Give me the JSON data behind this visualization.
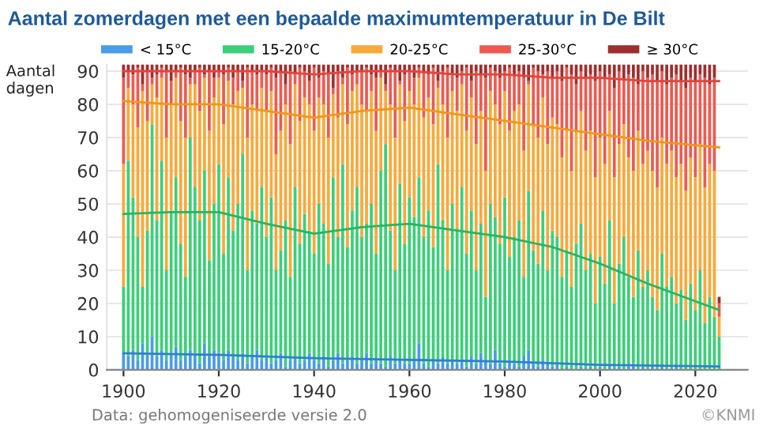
{
  "chart_data": {
    "type": "bar",
    "stacked": true,
    "title": "Aantal zomerdagen met een bepaalde maximumtemperatuur in De Bilt",
    "ylabel": "Aantal\ndagen",
    "x": [
      1900,
      1901,
      1902,
      1903,
      1904,
      1905,
      1906,
      1907,
      1908,
      1909,
      1910,
      1911,
      1912,
      1913,
      1914,
      1915,
      1916,
      1917,
      1918,
      1919,
      1920,
      1921,
      1922,
      1923,
      1924,
      1925,
      1926,
      1927,
      1928,
      1929,
      1930,
      1931,
      1932,
      1933,
      1934,
      1935,
      1936,
      1937,
      1938,
      1939,
      1940,
      1941,
      1942,
      1943,
      1944,
      1945,
      1946,
      1947,
      1948,
      1949,
      1950,
      1951,
      1952,
      1953,
      1954,
      1955,
      1956,
      1957,
      1958,
      1959,
      1960,
      1961,
      1962,
      1963,
      1964,
      1965,
      1966,
      1967,
      1968,
      1969,
      1970,
      1971,
      1972,
      1973,
      1974,
      1975,
      1976,
      1977,
      1978,
      1979,
      1980,
      1981,
      1982,
      1983,
      1984,
      1985,
      1986,
      1987,
      1988,
      1989,
      1990,
      1991,
      1992,
      1993,
      1994,
      1995,
      1996,
      1997,
      1998,
      1999,
      2000,
      2001,
      2002,
      2003,
      2004,
      2005,
      2006,
      2007,
      2008,
      2009,
      2010,
      2011,
      2012,
      2013,
      2014,
      2015,
      2016,
      2017,
      2018,
      2019,
      2020,
      2021,
      2022,
      2023,
      2024,
      2025
    ],
    "series": [
      {
        "name": "< 15°C",
        "color": "#4a9be8",
        "values": [
          5,
          4,
          6,
          3,
          8,
          5,
          10,
          4,
          6,
          3,
          5,
          7,
          3,
          4,
          6,
          5,
          2,
          8,
          4,
          6,
          5,
          3,
          6,
          4,
          3,
          5,
          2,
          4,
          6,
          3,
          4,
          2,
          3,
          5,
          1,
          3,
          4,
          2,
          3,
          5,
          3,
          2,
          4,
          1,
          3,
          5,
          2,
          3,
          4,
          2,
          3,
          5,
          2,
          3,
          2,
          1,
          4,
          2,
          3,
          2,
          2,
          3,
          8,
          2,
          1,
          3,
          2,
          4,
          2,
          3,
          2,
          3,
          1,
          4,
          2,
          5,
          3,
          2,
          6,
          2,
          1,
          3,
          2,
          1,
          4,
          6,
          2,
          1,
          3,
          2,
          1,
          2,
          0,
          1,
          0,
          0,
          1,
          0,
          1,
          0,
          1,
          0,
          2,
          0,
          1,
          0,
          1,
          2,
          0,
          1,
          0,
          1,
          0,
          1,
          0,
          0,
          1,
          0,
          0,
          0,
          0,
          0,
          0,
          0,
          0,
          0
        ]
      },
      {
        "name": "15-20°C",
        "color": "#3ccf7a",
        "values": [
          20,
          59,
          46,
          37,
          17,
          37,
          64,
          41,
          57,
          27,
          43,
          51,
          35,
          24,
          64,
          50,
          43,
          52,
          29,
          44,
          57,
          32,
          52,
          38,
          47,
          60,
          28,
          44,
          38,
          52,
          36,
          50,
          27,
          31,
          44,
          25,
          51,
          36,
          44,
          37,
          32,
          48,
          40,
          31,
          55,
          35,
          60,
          34,
          44,
          53,
          37,
          39,
          48,
          32,
          58,
          67,
          38,
          28,
          53,
          36,
          50,
          43,
          50,
          38,
          47,
          34,
          60,
          41,
          28,
          47,
          40,
          52,
          34,
          44,
          28,
          39,
          19,
          48,
          40,
          36,
          51,
          31,
          38,
          44,
          24,
          48,
          34,
          31,
          45,
          28,
          41,
          38,
          28,
          35,
          25,
          38,
          43,
          30,
          34,
          20,
          33,
          26,
          43,
          20,
          31,
          40,
          27,
          20,
          36,
          24,
          30,
          21,
          18,
          34,
          25,
          28,
          19,
          24,
          15,
          26,
          18,
          30,
          14,
          22,
          16,
          10
        ]
      },
      {
        "name": "20-25°C",
        "color": "#f9a93a",
        "values": [
          37,
          22,
          28,
          33,
          59,
          33,
          12,
          37,
          25,
          40,
          32,
          30,
          37,
          42,
          16,
          31,
          33,
          28,
          39,
          32,
          26,
          39,
          29,
          38,
          34,
          20,
          40,
          32,
          34,
          30,
          38,
          32,
          35,
          36,
          35,
          40,
          31,
          37,
          35,
          38,
          37,
          32,
          36,
          38,
          25,
          36,
          24,
          37,
          36,
          31,
          40,
          34,
          34,
          37,
          28,
          16,
          38,
          40,
          30,
          37,
          32,
          34,
          30,
          36,
          34,
          37,
          23,
          35,
          40,
          34,
          36,
          31,
          37,
          34,
          38,
          34,
          38,
          34,
          34,
          36,
          32,
          38,
          38,
          35,
          38,
          32,
          38,
          38,
          34,
          38,
          34,
          34,
          36,
          36,
          35,
          34,
          34,
          36,
          37,
          38,
          36,
          36,
          33,
          38,
          36,
          34,
          36,
          38,
          36,
          37,
          36,
          38,
          37,
          35,
          37,
          38,
          38,
          38,
          39,
          38,
          40,
          38,
          41,
          40,
          44,
          6
        ]
      },
      {
        "name": "25-30°C",
        "color": "#ee5a50",
        "values": [
          26,
          5,
          9,
          18,
          2,
          15,
          2,
          7,
          3,
          20,
          7,
          2,
          16,
          19,
          2,
          4,
          13,
          1,
          18,
          6,
          2,
          15,
          4,
          8,
          6,
          2,
          21,
          10,
          11,
          5,
          11,
          7,
          23,
          18,
          6,
          22,
          3,
          16,
          8,
          7,
          19,
          6,
          10,
          19,
          2,
          14,
          2,
          17,
          5,
          4,
          10,
          13,
          5,
          16,
          2,
          2,
          11,
          20,
          1,
          14,
          6,
          8,
          3,
          14,
          7,
          17,
          2,
          10,
          21,
          5,
          10,
          4,
          19,
          5,
          22,
          11,
          28,
          7,
          10,
          14,
          6,
          19,
          11,
          10,
          22,
          1,
          17,
          20,
          7,
          22,
          12,
          16,
          23,
          19,
          29,
          14,
          12,
          22,
          17,
          29,
          20,
          26,
          11,
          27,
          22,
          13,
          25,
          28,
          14,
          28,
          22,
          29,
          32,
          20,
          24,
          22,
          31,
          25,
          31,
          24,
          29,
          21,
          33,
          24,
          28,
          4
        ]
      },
      {
        "name": "≥ 30°C",
        "color": "#9e2f2f",
        "values": [
          4,
          2,
          3,
          1,
          6,
          2,
          4,
          3,
          1,
          2,
          5,
          2,
          1,
          3,
          4,
          2,
          1,
          3,
          2,
          4,
          2,
          3,
          1,
          4,
          2,
          5,
          1,
          2,
          3,
          2,
          3,
          1,
          4,
          2,
          6,
          2,
          3,
          1,
          2,
          5,
          1,
          4,
          2,
          3,
          7,
          2,
          4,
          1,
          3,
          2,
          2,
          1,
          3,
          4,
          2,
          6,
          1,
          2,
          5,
          3,
          2,
          4,
          1,
          2,
          3,
          1,
          5,
          2,
          1,
          3,
          4,
          2,
          1,
          5,
          2,
          3,
          4,
          1,
          2,
          4,
          2,
          1,
          3,
          2,
          4,
          5,
          1,
          2,
          3,
          2,
          4,
          2,
          5,
          1,
          3,
          6,
          2,
          4,
          3,
          5,
          2,
          4,
          3,
          7,
          2,
          5,
          3,
          4,
          6,
          2,
          4,
          3,
          5,
          2,
          6,
          4,
          3,
          5,
          7,
          4,
          5,
          3,
          4,
          6,
          4,
          2
        ]
      },
      {
        "type": "line",
        "color": "#2f7fd0",
        "x": [
          1900,
          1920,
          1940,
          1960,
          1980,
          2000,
          2025
        ],
        "values": [
          5,
          4.5,
          3.5,
          3,
          2.5,
          1.5,
          1
        ]
      },
      {
        "type": "line",
        "color": "#27b463",
        "x": [
          1900,
          1910,
          1920,
          1930,
          1940,
          1950,
          1960,
          1970,
          1980,
          1990,
          2000,
          2010,
          2025
        ],
        "values": [
          47,
          47.5,
          47.5,
          44,
          41,
          43,
          44,
          42,
          40,
          37,
          32,
          26,
          18
        ]
      },
      {
        "type": "line",
        "color": "#f0961a",
        "x": [
          1900,
          1910,
          1920,
          1930,
          1940,
          1950,
          1960,
          1970,
          1980,
          1990,
          2000,
          2010,
          2025
        ],
        "values": [
          81,
          80,
          80,
          78,
          76,
          78,
          79,
          77,
          75,
          73,
          71,
          69,
          67
        ]
      },
      {
        "type": "line",
        "color": "#e0443c",
        "x": [
          1900,
          1910,
          1920,
          1930,
          1940,
          1950,
          1960,
          1970,
          1980,
          1990,
          2000,
          2010,
          2025
        ],
        "values": [
          90,
          90,
          90,
          90,
          89,
          90,
          90,
          89,
          89,
          88,
          88,
          87,
          87
        ]
      }
    ],
    "xlim": [
      1896.5,
      2031
    ],
    "xticks": [
      1900,
      1920,
      1940,
      1960,
      1980,
      2000,
      2020
    ],
    "ylim": [
      0,
      92
    ],
    "yticks": [
      0,
      10,
      20,
      30,
      40,
      50,
      60,
      70,
      80,
      90
    ],
    "grid": "y",
    "legend": "top",
    "annotations": [
      "Data: gehomogeniseerde versie 2.0",
      "©KNMI"
    ]
  }
}
